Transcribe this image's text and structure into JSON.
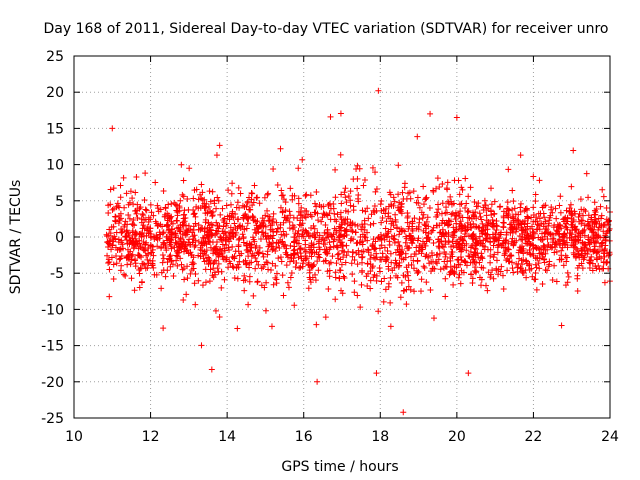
{
  "chart_data": {
    "type": "scatter",
    "title": "Day 168 of 2011, Sidereal Day-to-day VTEC variation (SDTVAR) for receiver unro",
    "xlabel": "GPS time / hours",
    "ylabel": "SDTVAR / TECUs",
    "xlim": [
      10,
      24
    ],
    "ylim": [
      -25,
      25
    ],
    "xticks": [
      "10",
      "12",
      "14",
      "16",
      "18",
      "20",
      "22",
      "24"
    ],
    "yticks": [
      "25",
      "20",
      "15",
      "10",
      "5",
      "0",
      "-5",
      "-10",
      "-15",
      "-20",
      "-25"
    ],
    "grid": true,
    "marker": "+",
    "color": "#ff0000",
    "series": [
      {
        "name": "SDTVAR",
        "x_range": [
          10.85,
          24.0
        ],
        "notable_points": [
          {
            "x": 17.95,
            "y": 20.2
          },
          {
            "x": 18.6,
            "y": -24.2
          },
          {
            "x": 16.35,
            "y": -20.0
          },
          {
            "x": 17.9,
            "y": -18.8
          },
          {
            "x": 19.3,
            "y": 17.0
          },
          {
            "x": 16.7,
            "y": 16.6
          },
          {
            "x": 11.0,
            "y": 15.0
          },
          {
            "x": 13.6,
            "y": -18.3
          },
          {
            "x": 20.0,
            "y": 16.5
          },
          {
            "x": 20.3,
            "y": -18.8
          }
        ],
        "envelope": [
          {
            "x": 11,
            "spread": 5.5
          },
          {
            "x": 12,
            "spread": 5.0
          },
          {
            "x": 14,
            "spread": 5.5
          },
          {
            "x": 16,
            "spread": 6.0
          },
          {
            "x": 18,
            "spread": 6.5
          },
          {
            "x": 20,
            "spread": 6.0
          },
          {
            "x": 22,
            "spread": 4.5
          },
          {
            "x": 24,
            "spread": 4.5
          }
        ]
      }
    ]
  }
}
